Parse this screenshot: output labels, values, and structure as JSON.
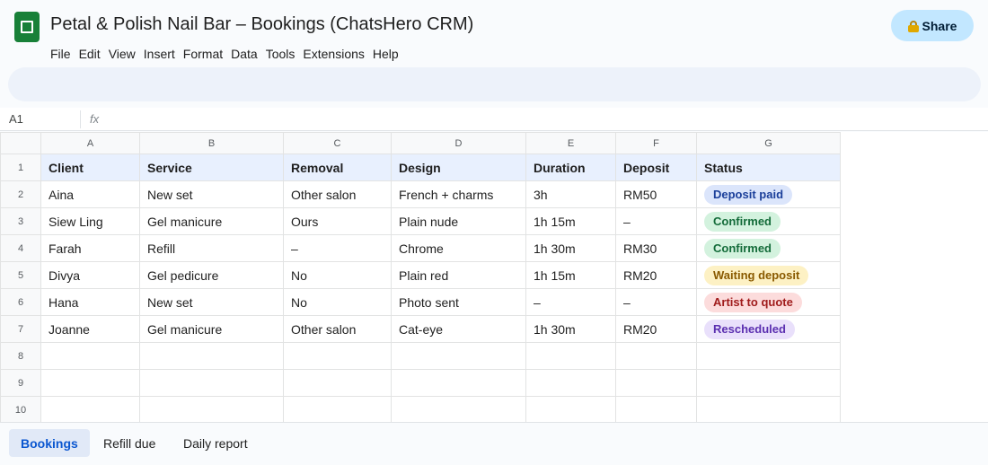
{
  "app": {
    "title": "Petal & Polish Nail Bar – Bookings (ChatsHero CRM)",
    "share_label": "Share",
    "logo_icon": "sheets-logo-icon",
    "share_icon": "lock-icon"
  },
  "menu": [
    "File",
    "Edit",
    "View",
    "Insert",
    "Format",
    "Data",
    "Tools",
    "Extensions",
    "Help"
  ],
  "formula_bar": {
    "cell_ref": "A1",
    "fx_label": "fx",
    "value": ""
  },
  "sheet": {
    "columns": [
      "A",
      "B",
      "C",
      "D",
      "E",
      "F",
      "G"
    ],
    "row_numbers": [
      "1",
      "2",
      "3",
      "4",
      "5",
      "6",
      "7",
      "8",
      "9",
      "10"
    ],
    "header": [
      "Client",
      "Service",
      "Removal",
      "Design",
      "Duration",
      "Deposit",
      "Status"
    ],
    "rows": [
      [
        "Aina",
        "New set",
        "Other salon",
        "French + charms",
        "3h",
        "RM50",
        "Deposit paid"
      ],
      [
        "Siew Ling",
        "Gel manicure",
        "Ours",
        "Plain nude",
        "1h 15m",
        "–",
        "Confirmed"
      ],
      [
        "Farah",
        "Refill",
        "–",
        "Chrome",
        "1h 30m",
        "RM30",
        "Confirmed"
      ],
      [
        "Divya",
        "Gel pedicure",
        "No",
        "Plain red",
        "1h 15m",
        "RM20",
        "Waiting deposit"
      ],
      [
        "Hana",
        "New set",
        "No",
        "Photo sent",
        "–",
        "–",
        "Artist to quote"
      ],
      [
        "Joanne",
        "Gel manicure",
        "Other salon",
        "Cat-eye",
        "1h 30m",
        "RM20",
        "Rescheduled"
      ]
    ],
    "empty_rows": 3
  },
  "status_colors": {
    "Deposit paid": {
      "bg": "#dbe5fb",
      "fg": "#1b3f9a"
    },
    "Confirmed": {
      "bg": "#d3f2de",
      "fg": "#146c3a"
    },
    "Waiting deposit": {
      "bg": "#fdf1c4",
      "fg": "#8a5a00"
    },
    "Artist to quote": {
      "bg": "#fcdcdc",
      "fg": "#a01c1c"
    },
    "Rescheduled": {
      "bg": "#e9e0fb",
      "fg": "#5b2fb0"
    }
  },
  "tabs": [
    {
      "label": "Bookings",
      "active": true
    },
    {
      "label": "Refill due",
      "active": false
    },
    {
      "label": "Daily report",
      "active": false
    }
  ],
  "colors": {
    "accent": "#0b57d0",
    "header_fill": "#e8f0fe",
    "share_button": "#c2e7ff",
    "logo_green": "#188038"
  }
}
